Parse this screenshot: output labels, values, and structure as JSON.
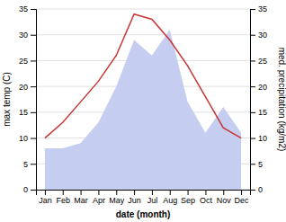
{
  "chart_data": {
    "type": "line",
    "categories": [
      "Jan",
      "Feb",
      "Mar",
      "Apr",
      "May",
      "Jun",
      "Jul",
      "Aug",
      "Sep",
      "Oct",
      "Nov",
      "Dec"
    ],
    "series": [
      {
        "type": "area",
        "axis": "y2",
        "color": "#c5cef0",
        "values": [
          8,
          8,
          9,
          13,
          20,
          29,
          26,
          31,
          17,
          11,
          16,
          11
        ]
      },
      {
        "type": "line",
        "color": "#cc3333",
        "values": [
          10,
          13,
          17,
          21,
          26,
          34,
          33,
          29,
          24,
          18,
          12,
          10
        ]
      }
    ],
    "xlabel": "date (month)",
    "ylabel": "max temp (C)",
    "y2label": "med. precipitation (kg/m2)",
    "ylim": [
      0,
      35
    ],
    "yticks": [
      0,
      5,
      10,
      15,
      20,
      25,
      30,
      35
    ],
    "y2lim": [
      0,
      35
    ],
    "y2ticks": [
      0,
      5,
      10,
      15,
      20,
      25,
      30,
      35
    ],
    "grid": true
  }
}
